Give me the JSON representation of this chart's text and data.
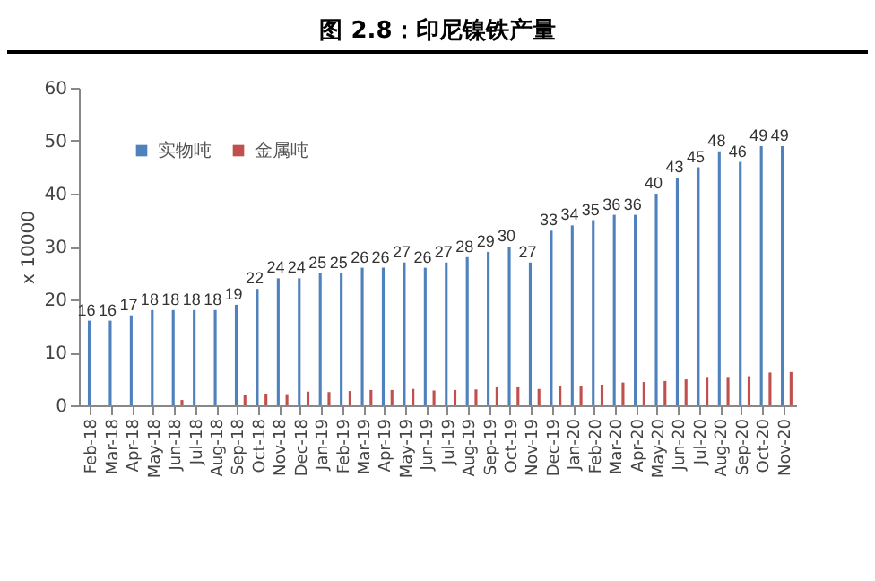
{
  "chart_data": {
    "type": "bar",
    "title": "图 2.8：印尼镍铁产量",
    "ylabel": "x 10000",
    "categories": [
      "Feb-18",
      "Mar-18",
      "Apr-18",
      "May-18",
      "Jun-18",
      "Jul-18",
      "Aug-18",
      "Sep-18",
      "Oct-18",
      "Nov-18",
      "Dec-18",
      "Jan-19",
      "Feb-19",
      "Mar-19",
      "Apr-19",
      "May-19",
      "Jun-19",
      "Jul-19",
      "Aug-19",
      "Sep-19",
      "Oct-19",
      "Nov-19",
      "Dec-19",
      "Jan-20",
      "Feb-20",
      "Mar-20",
      "Apr-20",
      "May-20",
      "Jun-20",
      "Jul-20",
      "Aug-20",
      "Sep-20",
      "Oct-20",
      "Nov-20"
    ],
    "series": [
      {
        "name": "实物吨",
        "color": "#4f81bd",
        "values": [
          16,
          16,
          17,
          18,
          18,
          18,
          18,
          19,
          22,
          24,
          24,
          25,
          25,
          26,
          26,
          27,
          26,
          27,
          28,
          29,
          30,
          27,
          33,
          34,
          35,
          36,
          36,
          40,
          43,
          45,
          48,
          46,
          49,
          49
        ],
        "value_labels": [
          "16",
          "16",
          "17",
          "18",
          "18",
          "18",
          "18",
          "19",
          "22",
          "24",
          "24",
          "25",
          "25",
          "26",
          "26",
          "27",
          "26",
          "27",
          "28",
          "29",
          "30",
          "27",
          "33",
          "34",
          "35",
          "36",
          "36",
          "40",
          "43",
          "45",
          "48",
          "46",
          "49",
          "49"
        ]
      },
      {
        "name": "金属吨",
        "color": "#c0504d",
        "values": [
          null,
          null,
          null,
          null,
          1.0,
          null,
          null,
          2.0,
          2.2,
          2.1,
          2.6,
          2.5,
          2.7,
          2.9,
          2.9,
          3.1,
          2.8,
          2.9,
          3.0,
          3.4,
          3.4,
          3.1,
          3.7,
          3.7,
          3.9,
          4.3,
          4.4,
          4.6,
          4.9,
          5.2,
          5.2,
          5.5,
          6.2,
          6.3
        ]
      }
    ],
    "ylim": [
      0,
      60
    ],
    "yticks": [
      0,
      10,
      20,
      30,
      40,
      50,
      60
    ],
    "grid": false,
    "legend": "top left"
  }
}
